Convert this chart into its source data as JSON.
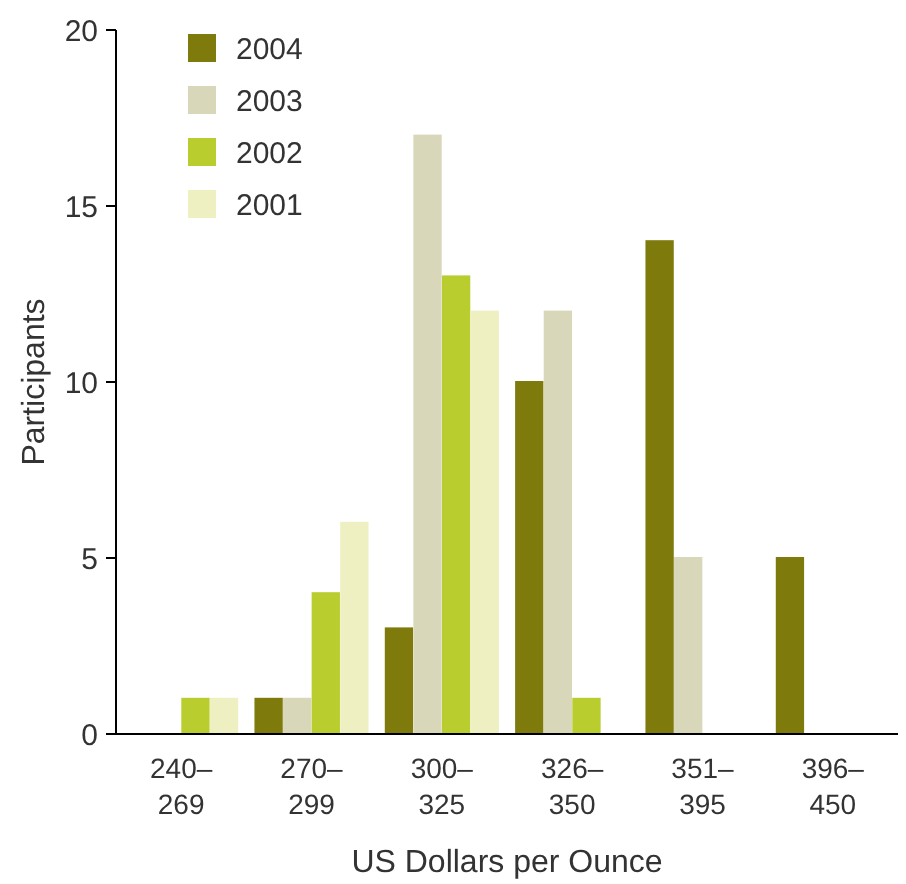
{
  "chart_data": {
    "type": "bar",
    "xlabel": "US Dollars per Ounce",
    "ylabel": "Participants",
    "categories": [
      "240–\n269",
      "270–\n299",
      "300–\n325",
      "326–\n350",
      "351–\n395",
      "396–\n450"
    ],
    "series": [
      {
        "name": "2004",
        "color": "#7f7a0c",
        "values": [
          0,
          1,
          3,
          10,
          14,
          5
        ]
      },
      {
        "name": "2003",
        "color": "#d9d7b9",
        "values": [
          0,
          1,
          17,
          12,
          5,
          0
        ]
      },
      {
        "name": "2002",
        "color": "#b9cd2f",
        "values": [
          1,
          4,
          13,
          1,
          0,
          0
        ]
      },
      {
        "name": "2001",
        "color": "#eef0c2",
        "values": [
          1,
          6,
          12,
          0,
          0,
          0
        ]
      }
    ],
    "ylim": [
      0,
      20
    ],
    "yticks": [
      0,
      5,
      10,
      15,
      20
    ],
    "legend": "top left"
  }
}
